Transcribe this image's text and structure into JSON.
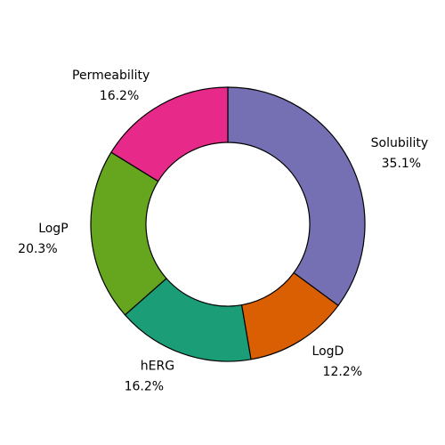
{
  "chart_data": {
    "type": "pie",
    "variant": "donut",
    "title": "",
    "start_angle_deg": 90,
    "direction": "clockwise",
    "slices": [
      {
        "label": "Solubility",
        "percent_label": "35.1%",
        "value": 35.1,
        "color": "#7570b3"
      },
      {
        "label": "LogD",
        "percent_label": "12.2%",
        "value": 12.2,
        "color": "#d95f02"
      },
      {
        "label": "hERG",
        "percent_label": "16.2%",
        "value": 16.2,
        "color": "#1b9e77"
      },
      {
        "label": "LogP",
        "percent_label": "20.3%",
        "value": 20.3,
        "color": "#66a61e"
      },
      {
        "label": "Permeability",
        "percent_label": "16.2%",
        "value": 16.2,
        "color": "#e7298a"
      }
    ]
  }
}
